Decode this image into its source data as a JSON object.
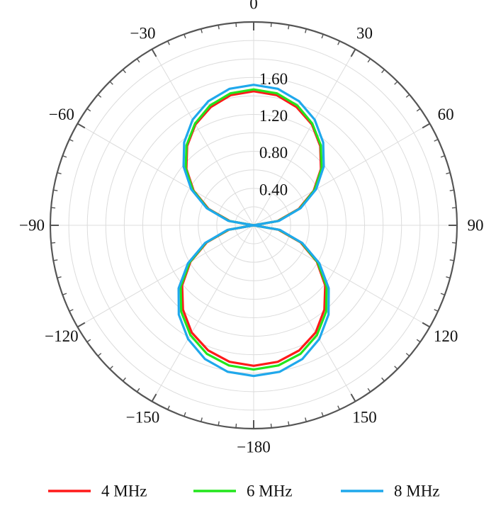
{
  "chart_data": {
    "type": "polar-line",
    "title": "",
    "angular_axis": {
      "unit": "degrees",
      "direction": "clockwise",
      "zero_location": "top",
      "tick_labels": [
        {
          "angle": 0,
          "label": "0"
        },
        {
          "angle": 30,
          "label": "30"
        },
        {
          "angle": 60,
          "label": "60"
        },
        {
          "angle": 90,
          "label": "90"
        },
        {
          "angle": 120,
          "label": "120"
        },
        {
          "angle": 150,
          "label": "150"
        },
        {
          "angle": 180,
          "label": "−180"
        },
        {
          "angle": -150,
          "label": "−150"
        },
        {
          "angle": -120,
          "label": "−120"
        },
        {
          "angle": -90,
          "label": "−90"
        },
        {
          "angle": -60,
          "label": "−60"
        },
        {
          "angle": -30,
          "label": "−30"
        }
      ]
    },
    "radial_axis": {
      "range": [
        0,
        2.2
      ],
      "ticks": [
        0.4,
        0.8,
        1.2,
        1.6
      ],
      "tick_labels": [
        "0.40",
        "0.80",
        "1.20",
        "1.60"
      ],
      "grid": true
    },
    "legend": {
      "placement": "bottom"
    },
    "series": [
      {
        "name": "4 MHz",
        "color": "#ff1a1a",
        "points": [
          [
            0,
            1.45
          ],
          [
            10,
            1.43
          ],
          [
            20,
            1.36
          ],
          [
            30,
            1.26
          ],
          [
            40,
            1.12
          ],
          [
            50,
            0.95
          ],
          [
            60,
            0.75
          ],
          [
            70,
            0.52
          ],
          [
            80,
            0.26
          ],
          [
            90,
            0.0
          ],
          [
            100,
            0.27
          ],
          [
            110,
            0.54
          ],
          [
            120,
            0.79
          ],
          [
            130,
            1.01
          ],
          [
            140,
            1.19
          ],
          [
            150,
            1.34
          ],
          [
            160,
            1.44
          ],
          [
            170,
            1.5
          ],
          [
            180,
            1.52
          ],
          [
            190,
            1.5
          ],
          [
            200,
            1.44
          ],
          [
            210,
            1.34
          ],
          [
            220,
            1.19
          ],
          [
            230,
            1.01
          ],
          [
            240,
            0.79
          ],
          [
            250,
            0.54
          ],
          [
            260,
            0.27
          ],
          [
            270,
            0.0
          ],
          [
            280,
            0.26
          ],
          [
            290,
            0.52
          ],
          [
            300,
            0.75
          ],
          [
            310,
            0.95
          ],
          [
            320,
            1.12
          ],
          [
            330,
            1.26
          ],
          [
            340,
            1.36
          ],
          [
            350,
            1.43
          ],
          [
            360,
            1.45
          ]
        ]
      },
      {
        "name": "6 MHz",
        "color": "#22e51c",
        "points": [
          [
            0,
            1.47
          ],
          [
            10,
            1.45
          ],
          [
            20,
            1.38
          ],
          [
            30,
            1.27
          ],
          [
            40,
            1.13
          ],
          [
            50,
            0.96
          ],
          [
            60,
            0.76
          ],
          [
            70,
            0.53
          ],
          [
            80,
            0.27
          ],
          [
            90,
            0.0
          ],
          [
            100,
            0.28
          ],
          [
            110,
            0.55
          ],
          [
            120,
            0.8
          ],
          [
            130,
            1.03
          ],
          [
            140,
            1.22
          ],
          [
            150,
            1.37
          ],
          [
            160,
            1.48
          ],
          [
            170,
            1.54
          ],
          [
            180,
            1.56
          ],
          [
            190,
            1.54
          ],
          [
            200,
            1.48
          ],
          [
            210,
            1.37
          ],
          [
            220,
            1.22
          ],
          [
            230,
            1.03
          ],
          [
            240,
            0.8
          ],
          [
            250,
            0.55
          ],
          [
            260,
            0.28
          ],
          [
            270,
            0.0
          ],
          [
            280,
            0.27
          ],
          [
            290,
            0.53
          ],
          [
            300,
            0.76
          ],
          [
            310,
            0.96
          ],
          [
            320,
            1.13
          ],
          [
            330,
            1.27
          ],
          [
            340,
            1.38
          ],
          [
            350,
            1.45
          ],
          [
            360,
            1.47
          ]
        ]
      },
      {
        "name": "8 MHz",
        "color": "#1fa8ec",
        "points": [
          [
            0,
            1.52
          ],
          [
            10,
            1.5
          ],
          [
            20,
            1.43
          ],
          [
            30,
            1.32
          ],
          [
            40,
            1.17
          ],
          [
            50,
            0.99
          ],
          [
            60,
            0.78
          ],
          [
            70,
            0.54
          ],
          [
            80,
            0.28
          ],
          [
            90,
            0.0
          ],
          [
            100,
            0.29
          ],
          [
            110,
            0.56
          ],
          [
            120,
            0.82
          ],
          [
            130,
            1.06
          ],
          [
            140,
            1.26
          ],
          [
            150,
            1.42
          ],
          [
            160,
            1.54
          ],
          [
            170,
            1.61
          ],
          [
            180,
            1.63
          ],
          [
            190,
            1.61
          ],
          [
            200,
            1.54
          ],
          [
            210,
            1.42
          ],
          [
            220,
            1.26
          ],
          [
            230,
            1.06
          ],
          [
            240,
            0.82
          ],
          [
            250,
            0.56
          ],
          [
            260,
            0.29
          ],
          [
            270,
            0.0
          ],
          [
            280,
            0.28
          ],
          [
            290,
            0.54
          ],
          [
            300,
            0.78
          ],
          [
            310,
            0.99
          ],
          [
            320,
            1.17
          ],
          [
            330,
            1.32
          ],
          [
            340,
            1.43
          ],
          [
            350,
            1.5
          ],
          [
            360,
            1.52
          ]
        ]
      }
    ]
  }
}
